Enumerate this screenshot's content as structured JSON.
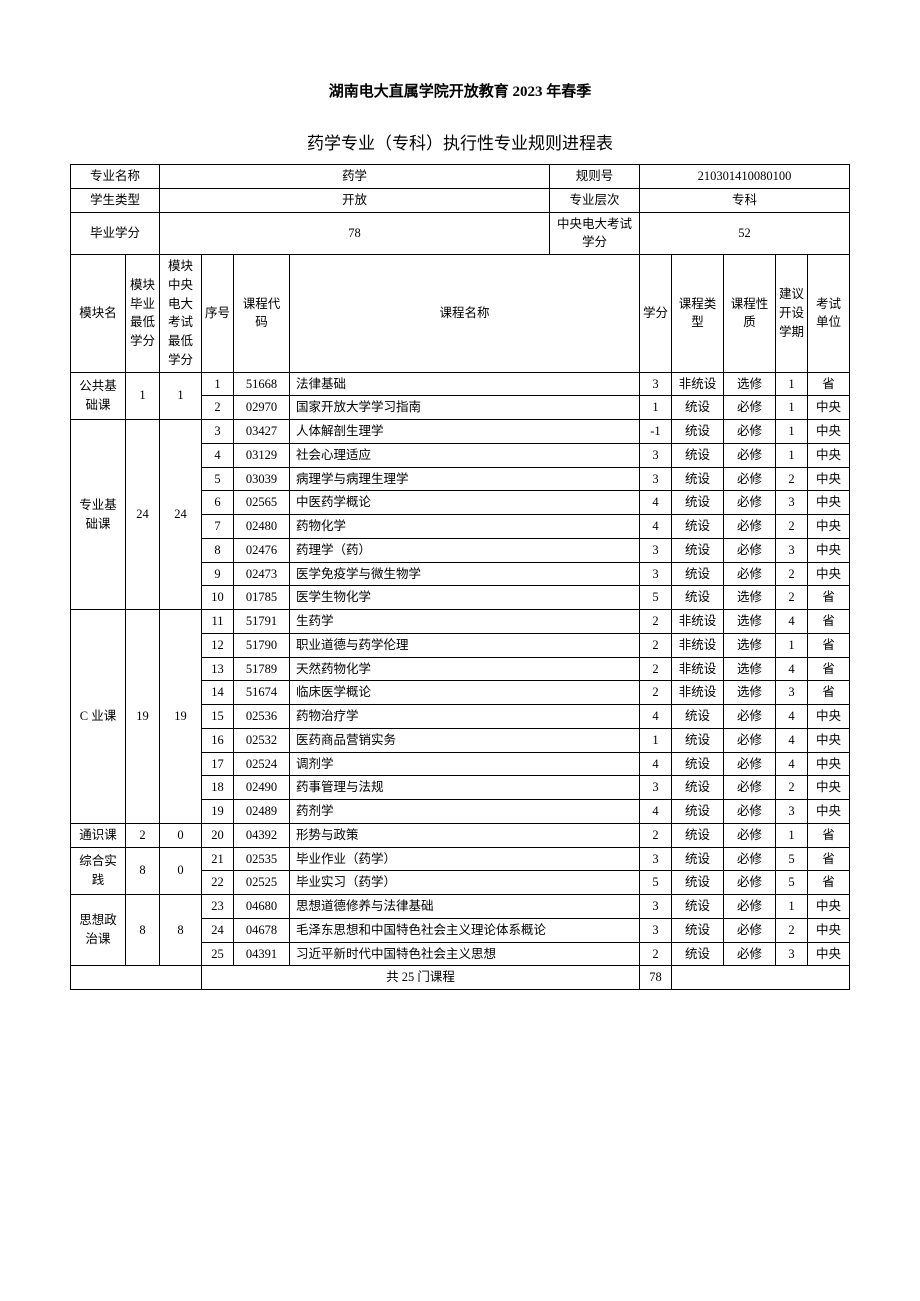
{
  "doc": {
    "title_main": "湖南电大直属学院开放教育 2023 年春季",
    "title_sub": "药学专业（专科）执行性专业规则进程表",
    "header": {
      "major_label": "专业名称",
      "major_value": "药学",
      "rule_label": "规则号",
      "rule_value": "210301410080100",
      "student_type_label": "学生类型",
      "student_type_value": "开放",
      "level_label": "专业层次",
      "level_value": "专科",
      "grad_credit_label": "毕业学分",
      "grad_credit_value": "78",
      "central_credit_label": "中央电大考试学分",
      "central_credit_value": "52"
    },
    "columns": {
      "module": "模块名",
      "module_credit": "模块毕业最低学分",
      "central_credit": "模块中央电大考试最低学分",
      "seq": "序号",
      "code": "课程代码",
      "name": "课程名称",
      "credit": "学分",
      "course_type": "课程类型",
      "course_nature": "课程性质",
      "semester": "建议开设学期",
      "unit": "考试单位"
    },
    "modules": [
      {
        "name": "公共基础课",
        "min": "1",
        "central": "1",
        "rows": [
          {
            "seq": "1",
            "code": "51668",
            "name": "法律基础",
            "credit": "3",
            "type": "非统设",
            "nature": "选修",
            "sem": "1",
            "unit": "省"
          },
          {
            "seq": "2",
            "code": "02970",
            "name": "国家开放大学学习指南",
            "credit": "1",
            "type": "统设",
            "nature": "必修",
            "sem": "1",
            "unit": "中央"
          }
        ]
      },
      {
        "name": "专业基础课",
        "min": "24",
        "central": "24",
        "rows": [
          {
            "seq": "3",
            "code": "03427",
            "name": "人体解剖生理学",
            "credit": "-1",
            "type": "统设",
            "nature": "必修",
            "sem": "1",
            "unit": "中央"
          },
          {
            "seq": "4",
            "code": "03129",
            "name": "社会心理适应",
            "credit": "3",
            "type": "统设",
            "nature": "必修",
            "sem": "1",
            "unit": "中央"
          },
          {
            "seq": "5",
            "code": "03039",
            "name": "病理学与病理生理学",
            "credit": "3",
            "type": "统设",
            "nature": "必修",
            "sem": "2",
            "unit": "中央"
          },
          {
            "seq": "6",
            "code": "02565",
            "name": "中医药学概论",
            "credit": "4",
            "type": "统设",
            "nature": "必修",
            "sem": "3",
            "unit": "中央"
          },
          {
            "seq": "7",
            "code": "02480",
            "name": "药物化学",
            "credit": "4",
            "type": "统设",
            "nature": "必修",
            "sem": "2",
            "unit": "中央"
          },
          {
            "seq": "8",
            "code": "02476",
            "name": "药理学（药）",
            "credit": "3",
            "type": "统设",
            "nature": "必修",
            "sem": "3",
            "unit": "中央"
          },
          {
            "seq": "9",
            "code": "02473",
            "name": "医学免疫学与微生物学",
            "credit": "3",
            "type": "统设",
            "nature": "必修",
            "sem": "2",
            "unit": "中央"
          },
          {
            "seq": "10",
            "code": "01785",
            "name": "医学生物化学",
            "credit": "5",
            "type": "统设",
            "nature": "选修",
            "sem": "2",
            "unit": "省"
          }
        ]
      },
      {
        "name": "C 业课",
        "min": "19",
        "central": "19",
        "rows": [
          {
            "seq": "11",
            "code": "51791",
            "name": "生药学",
            "credit": "2",
            "type": "非统设",
            "nature": "选修",
            "sem": "4",
            "unit": "省"
          },
          {
            "seq": "12",
            "code": "51790",
            "name": "职业道德与药学伦理",
            "credit": "2",
            "type": "非统设",
            "nature": "选修",
            "sem": "1",
            "unit": "省"
          },
          {
            "seq": "13",
            "code": "51789",
            "name": "天然药物化学",
            "credit": "2",
            "type": "非统设",
            "nature": "选修",
            "sem": "4",
            "unit": "省"
          },
          {
            "seq": "14",
            "code": "51674",
            "name": "临床医学概论",
            "credit": "2",
            "type": "非统设",
            "nature": "选修",
            "sem": "3",
            "unit": "省"
          },
          {
            "seq": "15",
            "code": "02536",
            "name": "药物治疗学",
            "credit": "4",
            "type": "统设",
            "nature": "必修",
            "sem": "4",
            "unit": "中央"
          },
          {
            "seq": "16",
            "code": "02532",
            "name": "医药商品营销实务",
            "credit": "1",
            "type": "统设",
            "nature": "必修",
            "sem": "4",
            "unit": "中央"
          },
          {
            "seq": "17",
            "code": "02524",
            "name": "调剂学",
            "credit": "4",
            "type": "统设",
            "nature": "必修",
            "sem": "4",
            "unit": "中央"
          },
          {
            "seq": "18",
            "code": "02490",
            "name": "药事管理与法规",
            "credit": "3",
            "type": "统设",
            "nature": "必修",
            "sem": "2",
            "unit": "中央"
          },
          {
            "seq": "19",
            "code": "02489",
            "name": "药剂学",
            "credit": "4",
            "type": "统设",
            "nature": "必修",
            "sem": "3",
            "unit": "中央"
          }
        ]
      },
      {
        "name": "通识课",
        "min": "2",
        "central": "0",
        "rows": [
          {
            "seq": "20",
            "code": "04392",
            "name": "形势与政策",
            "credit": "2",
            "type": "统设",
            "nature": "必修",
            "sem": "1",
            "unit": "省"
          }
        ]
      },
      {
        "name": "综合实践",
        "min": "8",
        "central": "0",
        "rows": [
          {
            "seq": "21",
            "code": "02535",
            "name": "毕业作业（药学）",
            "credit": "3",
            "type": "统设",
            "nature": "必修",
            "sem": "5",
            "unit": "省"
          },
          {
            "seq": "22",
            "code": "02525",
            "name": "毕业实习（药学）",
            "credit": "5",
            "type": "统设",
            "nature": "必修",
            "sem": "5",
            "unit": "省"
          }
        ]
      },
      {
        "name": "思想政治课",
        "min": "8",
        "central": "8",
        "rows": [
          {
            "seq": "23",
            "code": "04680",
            "name": "思想道德修养与法律基础",
            "credit": "3",
            "type": "统设",
            "nature": "必修",
            "sem": "1",
            "unit": "中央"
          },
          {
            "seq": "24",
            "code": "04678",
            "name": " 毛泽东思想和中国特色社会主义理论体系概论",
            "credit": "3",
            "type": "统设",
            "nature": "必修",
            "sem": "2",
            "unit": "中央"
          },
          {
            "seq": "25",
            "code": "04391",
            "name": " 习近平新时代中国特色社会主义思想",
            "credit": "2",
            "type": "统设",
            "nature": "必修",
            "sem": "3",
            "unit": "中央"
          }
        ]
      }
    ],
    "footer": {
      "total_label": "共 25 门课程",
      "total_credit": "78"
    }
  }
}
